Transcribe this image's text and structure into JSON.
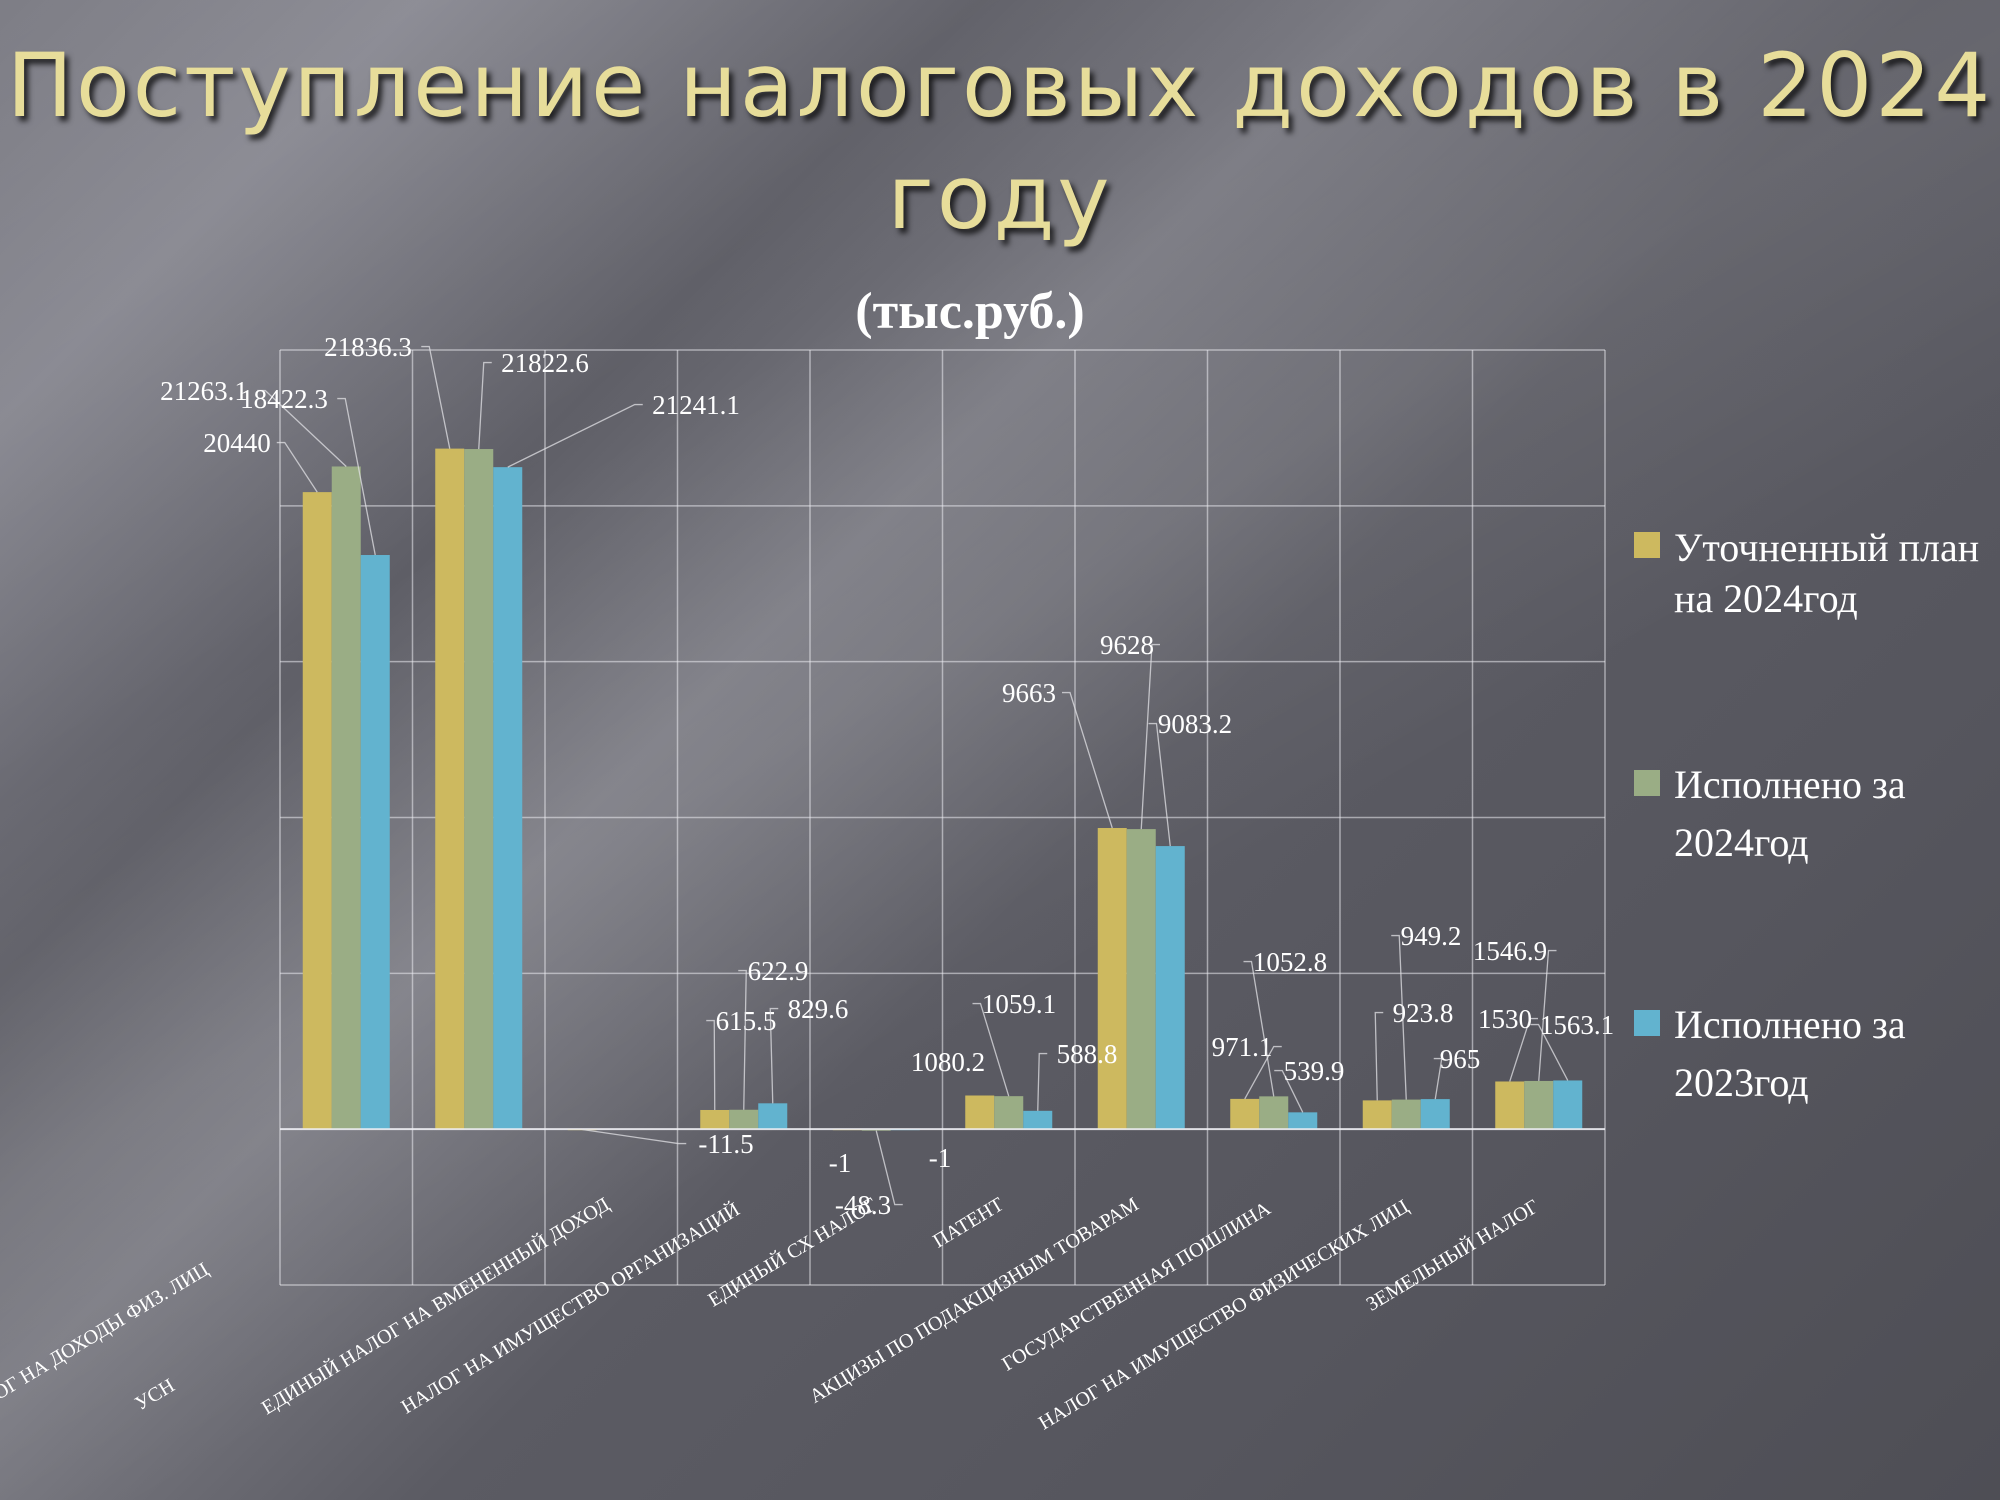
{
  "title": "Поступление налоговых доходов в 2024 году",
  "chart_data": {
    "type": "bar",
    "subtitle": "(тыс.руб.)",
    "categories": [
      "НАЛОГ НА ДОХОДЫ ФИЗ. ЛИЦ",
      "УСН",
      "ЕДИНЫЙ НАЛОГ НА ВМЕНЕННЫЙ ДОХОД",
      "НАЛОГ НА ИМУЩЕСТВО ОРГАНИЗАЦИЙ",
      "ЕДИНЫЙ СХ НАЛОГ",
      "ПАТЕНТ",
      "АКЦИЗЫ ПО ПОДАКЦИЗНЫМ ТОВАРАМ",
      "ГОСУДАРСТВЕННАЯ ПОШЛИНА",
      "НАЛОГ НА ИМУЩЕСТВО ФИЗИЧЕСКИХ ЛИЦ",
      "ЗЕМЕЛЬНЫЙ НАЛОГ"
    ],
    "series": [
      {
        "name": "Уточненный план на 2024год",
        "color": "#cdb95f",
        "values": [
          20440,
          21836.3,
          -11.5,
          615.5,
          -1,
          1080.2,
          9663,
          971.1,
          923.8,
          1530
        ]
      },
      {
        "name": "Исполнено за 2024год",
        "color": "#9aad85",
        "values": [
          21263.1,
          21822.6,
          null,
          622.9,
          -48.3,
          1059.1,
          9628,
          1052.8,
          949.2,
          1546.9
        ]
      },
      {
        "name": "Исполнено за 2023год",
        "color": "#62b3cf",
        "values": [
          18422.3,
          21241.1,
          null,
          829.6,
          -1,
          588.8,
          9083.2,
          539.9,
          965,
          1563.1
        ]
      }
    ],
    "data_labels": [
      [
        "20440",
        "21263.1",
        "18422.3"
      ],
      [
        "21836.3",
        "21822.6",
        "21241.1"
      ],
      [
        "-11.5"
      ],
      [
        "615.5",
        "622.9",
        "829.6"
      ],
      [
        "-1",
        "-48.3",
        "-1"
      ],
      [
        "1080.2",
        "1059.1",
        "588.8"
      ],
      [
        "9663",
        "9628",
        "9083.2"
      ],
      [
        "971.1",
        "1052.8",
        "539.9"
      ],
      [
        "923.8",
        "949.2",
        "965"
      ],
      [
        "1530",
        "1546.9",
        "1563.1"
      ]
    ],
    "ylim": [
      -5000,
      25000
    ],
    "grid": true,
    "legend_position": "right"
  }
}
